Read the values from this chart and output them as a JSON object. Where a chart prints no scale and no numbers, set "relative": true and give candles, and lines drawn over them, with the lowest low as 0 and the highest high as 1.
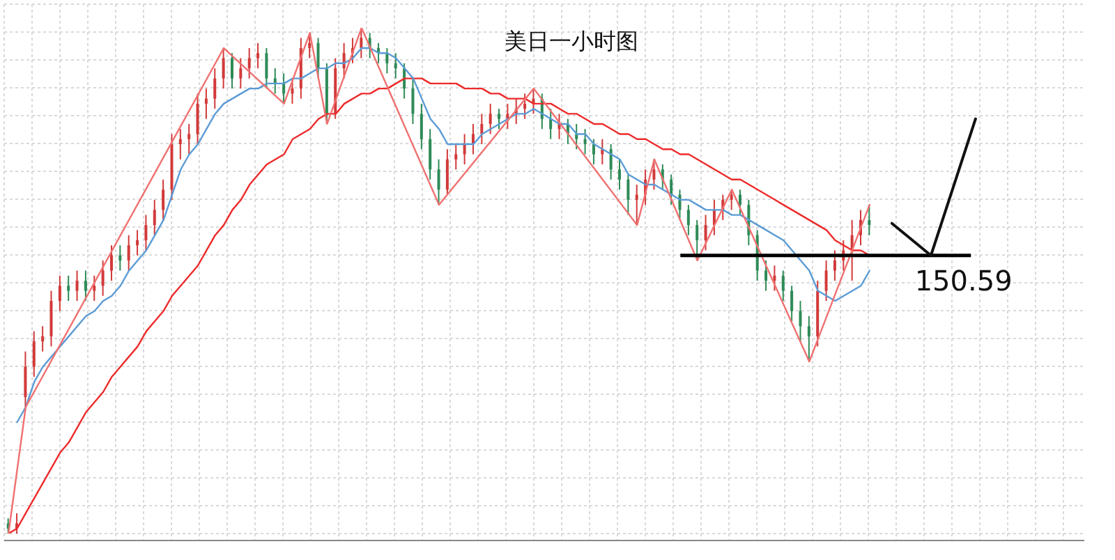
{
  "chart_data": {
    "type": "candlestick",
    "title": "美日一小时图",
    "relative": true,
    "grid": true,
    "categories": [
      null,
      null,
      null,
      null,
      null,
      null,
      null,
      null,
      null,
      null,
      null,
      null,
      null,
      null,
      null,
      null,
      null,
      null,
      null,
      null,
      null,
      null,
      null,
      null,
      null,
      null,
      null,
      null,
      null,
      null,
      null,
      null,
      null,
      null,
      null,
      null,
      null,
      null,
      null,
      null,
      null,
      null,
      null,
      null,
      null,
      null,
      null,
      null,
      null,
      null,
      null,
      null,
      null,
      null,
      null,
      null,
      null,
      null,
      null,
      null,
      null,
      null,
      null,
      null,
      null,
      null,
      null,
      null,
      null,
      null,
      null,
      null,
      null,
      null,
      null,
      null,
      null,
      null,
      null,
      null,
      null,
      null,
      null,
      null,
      null,
      null,
      null,
      null,
      null,
      null,
      null,
      null,
      null,
      null,
      null,
      null,
      null,
      null,
      null,
      null,
      null
    ],
    "ohlc": [
      [
        0.02,
        0.03,
        0.0,
        0.01
      ],
      [
        0.01,
        0.04,
        0.0,
        0.02
      ],
      [
        0.27,
        0.36,
        0.25,
        0.33
      ],
      [
        0.33,
        0.4,
        0.31,
        0.38
      ],
      [
        0.38,
        0.41,
        0.36,
        0.39
      ],
      [
        0.39,
        0.48,
        0.37,
        0.46
      ],
      [
        0.46,
        0.51,
        0.44,
        0.49
      ],
      [
        0.49,
        0.51,
        0.46,
        0.48
      ],
      [
        0.48,
        0.52,
        0.46,
        0.5
      ],
      [
        0.5,
        0.52,
        0.46,
        0.48
      ],
      [
        0.48,
        0.51,
        0.46,
        0.49
      ],
      [
        0.49,
        0.54,
        0.47,
        0.52
      ],
      [
        0.52,
        0.57,
        0.5,
        0.55
      ],
      [
        0.55,
        0.57,
        0.52,
        0.54
      ],
      [
        0.54,
        0.59,
        0.52,
        0.57
      ],
      [
        0.57,
        0.6,
        0.55,
        0.58
      ],
      [
        0.58,
        0.63,
        0.56,
        0.61
      ],
      [
        0.61,
        0.66,
        0.59,
        0.64
      ],
      [
        0.64,
        0.7,
        0.62,
        0.68
      ],
      [
        0.68,
        0.79,
        0.66,
        0.77
      ],
      [
        0.77,
        0.8,
        0.74,
        0.78
      ],
      [
        0.78,
        0.81,
        0.75,
        0.79
      ],
      [
        0.79,
        0.87,
        0.77,
        0.85
      ],
      [
        0.85,
        0.88,
        0.82,
        0.86
      ],
      [
        0.86,
        0.92,
        0.84,
        0.9
      ],
      [
        0.9,
        0.96,
        0.88,
        0.94
      ],
      [
        0.94,
        0.95,
        0.88,
        0.9
      ],
      [
        0.9,
        0.94,
        0.88,
        0.92
      ],
      [
        0.92,
        0.96,
        0.9,
        0.94
      ],
      [
        0.94,
        0.97,
        0.92,
        0.95
      ],
      [
        0.95,
        0.96,
        0.88,
        0.9
      ],
      [
        0.9,
        0.92,
        0.87,
        0.89
      ],
      [
        0.89,
        0.91,
        0.85,
        0.87
      ],
      [
        0.87,
        0.9,
        0.85,
        0.88
      ],
      [
        0.88,
        0.98,
        0.86,
        0.96
      ],
      [
        0.96,
        0.99,
        0.94,
        0.97
      ],
      [
        0.97,
        0.98,
        0.9,
        0.92
      ],
      [
        0.92,
        0.93,
        0.81,
        0.83
      ],
      [
        0.83,
        0.94,
        0.82,
        0.92
      ],
      [
        0.92,
        0.97,
        0.9,
        0.95
      ],
      [
        0.95,
        0.98,
        0.93,
        0.96
      ],
      [
        0.96,
        1.0,
        0.94,
        0.98
      ],
      [
        0.98,
        0.99,
        0.94,
        0.96
      ],
      [
        0.96,
        0.97,
        0.93,
        0.95
      ],
      [
        0.95,
        0.96,
        0.91,
        0.93
      ],
      [
        0.93,
        0.95,
        0.9,
        0.92
      ],
      [
        0.92,
        0.93,
        0.86,
        0.88
      ],
      [
        0.88,
        0.9,
        0.81,
        0.83
      ],
      [
        0.83,
        0.85,
        0.76,
        0.78
      ],
      [
        0.78,
        0.8,
        0.7,
        0.72
      ],
      [
        0.72,
        0.74,
        0.65,
        0.68
      ],
      [
        0.68,
        0.76,
        0.67,
        0.74
      ],
      [
        0.74,
        0.77,
        0.72,
        0.75
      ],
      [
        0.75,
        0.79,
        0.73,
        0.77
      ],
      [
        0.77,
        0.81,
        0.75,
        0.79
      ],
      [
        0.79,
        0.83,
        0.77,
        0.81
      ],
      [
        0.81,
        0.85,
        0.79,
        0.83
      ],
      [
        0.83,
        0.84,
        0.8,
        0.82
      ],
      [
        0.82,
        0.85,
        0.8,
        0.83
      ],
      [
        0.83,
        0.86,
        0.81,
        0.84
      ],
      [
        0.84,
        0.87,
        0.82,
        0.85
      ],
      [
        0.85,
        0.88,
        0.83,
        0.86
      ],
      [
        0.86,
        0.87,
        0.8,
        0.82
      ],
      [
        0.82,
        0.84,
        0.78,
        0.8
      ],
      [
        0.8,
        0.83,
        0.78,
        0.81
      ],
      [
        0.81,
        0.82,
        0.77,
        0.79
      ],
      [
        0.79,
        0.81,
        0.76,
        0.78
      ],
      [
        0.78,
        0.8,
        0.75,
        0.77
      ],
      [
        0.77,
        0.78,
        0.73,
        0.75
      ],
      [
        0.75,
        0.78,
        0.73,
        0.76
      ],
      [
        0.76,
        0.77,
        0.7,
        0.72
      ],
      [
        0.72,
        0.74,
        0.68,
        0.7
      ],
      [
        0.7,
        0.71,
        0.63,
        0.66
      ],
      [
        0.66,
        0.69,
        0.61,
        0.67
      ],
      [
        0.67,
        0.72,
        0.65,
        0.7
      ],
      [
        0.7,
        0.74,
        0.68,
        0.72
      ],
      [
        0.72,
        0.73,
        0.68,
        0.7
      ],
      [
        0.7,
        0.71,
        0.65,
        0.67
      ],
      [
        0.67,
        0.68,
        0.62,
        0.64
      ],
      [
        0.64,
        0.65,
        0.59,
        0.61
      ],
      [
        0.61,
        0.62,
        0.54,
        0.58
      ],
      [
        0.58,
        0.63,
        0.56,
        0.61
      ],
      [
        0.61,
        0.66,
        0.59,
        0.64
      ],
      [
        0.64,
        0.67,
        0.62,
        0.66
      ],
      [
        0.66,
        0.68,
        0.64,
        0.67
      ],
      [
        0.67,
        0.68,
        0.63,
        0.65
      ],
      [
        0.65,
        0.66,
        0.57,
        0.59
      ],
      [
        0.59,
        0.6,
        0.5,
        0.52
      ],
      [
        0.52,
        0.54,
        0.48,
        0.5
      ],
      [
        0.5,
        0.53,
        0.48,
        0.51
      ],
      [
        0.51,
        0.52,
        0.46,
        0.48
      ],
      [
        0.48,
        0.49,
        0.42,
        0.44
      ],
      [
        0.44,
        0.46,
        0.38,
        0.41
      ],
      [
        0.41,
        0.43,
        0.34,
        0.39
      ],
      [
        0.39,
        0.5,
        0.37,
        0.48
      ],
      [
        0.48,
        0.54,
        0.46,
        0.52
      ],
      [
        0.52,
        0.56,
        0.5,
        0.54
      ],
      [
        0.54,
        0.58,
        0.52,
        0.56
      ],
      [
        0.56,
        0.62,
        0.5,
        0.59
      ],
      [
        0.59,
        0.64,
        0.57,
        0.62
      ],
      [
        0.62,
        0.65,
        0.59,
        0.61
      ]
    ],
    "colors": [
      "#2e8b57",
      "#d23a3a",
      "#d23a3a",
      "#d23a3a",
      "#d23a3a",
      "#d23a3a",
      "#d23a3a",
      "#2e8b57",
      "#d23a3a",
      "#2e8b57",
      "#d23a3a",
      "#d23a3a",
      "#d23a3a",
      "#2e8b57",
      "#d23a3a",
      "#d23a3a",
      "#d23a3a",
      "#d23a3a",
      "#d23a3a",
      "#d23a3a",
      "#d23a3a",
      "#d23a3a",
      "#d23a3a",
      "#d23a3a",
      "#d23a3a",
      "#d23a3a",
      "#2e8b57",
      "#d23a3a",
      "#d23a3a",
      "#d23a3a",
      "#2e8b57",
      "#2e8b57",
      "#2e8b57",
      "#d23a3a",
      "#d23a3a",
      "#d23a3a",
      "#2e8b57",
      "#2e8b57",
      "#d23a3a",
      "#d23a3a",
      "#d23a3a",
      "#d23a3a",
      "#2e8b57",
      "#2e8b57",
      "#2e8b57",
      "#2e8b57",
      "#2e8b57",
      "#2e8b57",
      "#2e8b57",
      "#2e8b57",
      "#2e8b57",
      "#d23a3a",
      "#d23a3a",
      "#d23a3a",
      "#d23a3a",
      "#d23a3a",
      "#d23a3a",
      "#2e8b57",
      "#d23a3a",
      "#d23a3a",
      "#d23a3a",
      "#d23a3a",
      "#2e8b57",
      "#2e8b57",
      "#d23a3a",
      "#2e8b57",
      "#2e8b57",
      "#2e8b57",
      "#2e8b57",
      "#d23a3a",
      "#2e8b57",
      "#2e8b57",
      "#2e8b57",
      "#d23a3a",
      "#d23a3a",
      "#d23a3a",
      "#2e8b57",
      "#2e8b57",
      "#2e8b57",
      "#2e8b57",
      "#2e8b57",
      "#d23a3a",
      "#d23a3a",
      "#d23a3a",
      "#d23a3a",
      "#2e8b57",
      "#2e8b57",
      "#2e8b57",
      "#2e8b57",
      "#d23a3a",
      "#2e8b57",
      "#2e8b57",
      "#2e8b57",
      "#2e8b57",
      "#d23a3a",
      "#d23a3a",
      "#d23a3a",
      "#d23a3a",
      "#d23a3a",
      "#d23a3a",
      "#2e8b57"
    ],
    "series": [
      {
        "type": "line",
        "color": "#ee2a2a",
        "values": [
          0.0,
          0.01,
          0.04,
          0.07,
          0.1,
          0.13,
          0.16,
          0.18,
          0.21,
          0.24,
          0.26,
          0.28,
          0.31,
          0.33,
          0.35,
          0.37,
          0.4,
          0.42,
          0.44,
          0.47,
          0.49,
          0.51,
          0.53,
          0.56,
          0.59,
          0.61,
          0.64,
          0.66,
          0.69,
          0.71,
          0.73,
          0.74,
          0.75,
          0.78,
          0.79,
          0.8,
          0.82,
          0.83,
          0.83,
          0.85,
          0.86,
          0.87,
          0.87,
          0.88,
          0.88,
          0.89,
          0.9,
          0.9,
          0.9,
          0.89,
          0.89,
          0.89,
          0.89,
          0.88,
          0.88,
          0.88,
          0.87,
          0.87,
          0.86,
          0.86,
          0.86,
          0.85,
          0.85,
          0.85,
          0.84,
          0.83,
          0.83,
          0.82,
          0.81,
          0.81,
          0.8,
          0.79,
          0.79,
          0.78,
          0.78,
          0.77,
          0.76,
          0.76,
          0.75,
          0.75,
          0.74,
          0.73,
          0.72,
          0.71,
          0.7,
          0.7,
          0.69,
          0.68,
          0.67,
          0.66,
          0.65,
          0.64,
          0.63,
          0.62,
          0.61,
          0.6,
          0.58,
          0.57,
          0.56,
          0.56,
          0.55
        ]
      },
      {
        "type": "line",
        "color": "#5b9bd5",
        "values": [
          null,
          0.22,
          0.25,
          0.3,
          0.33,
          0.35,
          0.37,
          0.39,
          0.41,
          0.43,
          0.44,
          0.46,
          0.47,
          0.49,
          0.52,
          0.54,
          0.56,
          0.59,
          0.62,
          0.67,
          0.72,
          0.75,
          0.77,
          0.8,
          0.83,
          0.85,
          0.86,
          0.87,
          0.88,
          0.88,
          0.89,
          0.89,
          0.89,
          0.9,
          0.9,
          0.91,
          0.92,
          0.92,
          0.93,
          0.93,
          0.94,
          0.96,
          0.96,
          0.95,
          0.95,
          0.94,
          0.92,
          0.9,
          0.86,
          0.82,
          0.8,
          0.77,
          0.77,
          0.77,
          0.77,
          0.79,
          0.8,
          0.81,
          0.82,
          0.83,
          0.83,
          0.84,
          0.83,
          0.82,
          0.81,
          0.81,
          0.79,
          0.79,
          0.77,
          0.76,
          0.75,
          0.74,
          0.71,
          0.7,
          0.69,
          0.69,
          0.68,
          0.67,
          0.66,
          0.66,
          0.65,
          0.64,
          0.64,
          0.64,
          0.63,
          0.63,
          0.62,
          0.61,
          0.6,
          0.59,
          0.58,
          0.56,
          0.54,
          0.52,
          0.48,
          0.47,
          0.46,
          0.47,
          0.48,
          0.49,
          0.52
        ]
      },
      {
        "type": "line",
        "color": "#f07070",
        "values": [
          0.0,
          null,
          0.25,
          null,
          null,
          null,
          null,
          null,
          null,
          null,
          null,
          null,
          null,
          null,
          null,
          null,
          null,
          null,
          null,
          null,
          null,
          null,
          null,
          null,
          null,
          0.96,
          null,
          null,
          null,
          null,
          null,
          null,
          0.85,
          null,
          null,
          0.99,
          null,
          0.81,
          null,
          null,
          null,
          1.0,
          null,
          null,
          null,
          null,
          null,
          null,
          null,
          null,
          0.65,
          null,
          null,
          null,
          null,
          null,
          null,
          null,
          null,
          null,
          null,
          0.88,
          null,
          null,
          null,
          null,
          null,
          null,
          null,
          null,
          null,
          null,
          null,
          0.61,
          null,
          0.74,
          null,
          null,
          null,
          null,
          0.54,
          null,
          null,
          null,
          0.68,
          null,
          null,
          null,
          null,
          null,
          null,
          null,
          null,
          0.34,
          null,
          null,
          null,
          null,
          null,
          null,
          0.65
        ]
      }
    ],
    "ref_lines": [
      {
        "axis": "y",
        "value": 0.55,
        "color": "#000000"
      }
    ],
    "annotations": [
      "150.59"
    ]
  }
}
